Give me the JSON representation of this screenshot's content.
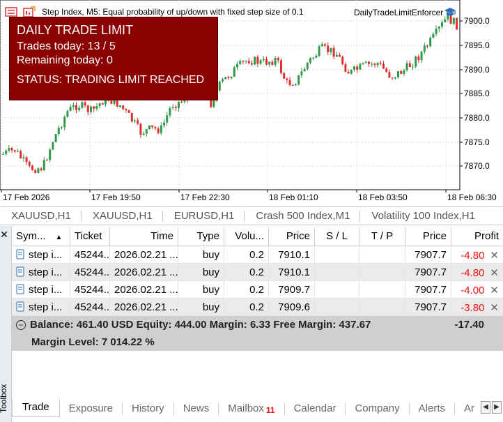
{
  "chart": {
    "title": "Step Index, M5:  Equal probability of up/down with fixed step size of 0.1",
    "ea_name": "DailyTradeLimitEnforcer",
    "price_labels": [
      "7900.0",
      "7895.0",
      "7890.0",
      "7885.0",
      "7880.0",
      "7875.0",
      "7870.0"
    ],
    "time_labels": [
      "17 Feb 2026",
      "17 Feb 19:50",
      "17 Feb 22:30",
      "18 Feb 01:10",
      "18 Feb 03:50",
      "18 Feb 06:30"
    ],
    "colors": {
      "up": "#2e9a4a",
      "down": "#e03030",
      "panel": "#8b0000"
    }
  },
  "limit_panel": {
    "title": "DAILY TRADE LIMIT",
    "trades_today": "Trades today: 13 / 5",
    "remaining": "Remaining today: 0",
    "status": "STATUS: TRADING LIMIT REACHED"
  },
  "chart_tabs": [
    "XAUUSD,H1",
    "XAUUSD,H1",
    "EURUSD,H1",
    "Crash 500 Index,M1",
    "Volatility 100 Index,H1"
  ],
  "toolbox": {
    "side_label": "Toolbox",
    "headers": {
      "symbol": "Sym...",
      "ticket": "Ticket",
      "time": "Time",
      "type": "Type",
      "volume": "Volu...",
      "price": "Price",
      "sl": "S / L",
      "tp": "T / P",
      "price2": "Price",
      "profit": "Profit"
    },
    "rows": [
      {
        "symbol": "step i...",
        "ticket": "45244...",
        "time": "2026.02.21 ...",
        "type": "buy",
        "volume": "0.2",
        "price": "7910.1",
        "sl": "",
        "tp": "",
        "price2": "7907.7",
        "profit": "-4.80"
      },
      {
        "symbol": "step i...",
        "ticket": "45244...",
        "time": "2026.02.21 ...",
        "type": "buy",
        "volume": "0.2",
        "price": "7910.1",
        "sl": "",
        "tp": "",
        "price2": "7907.7",
        "profit": "-4.80"
      },
      {
        "symbol": "step i...",
        "ticket": "45244...",
        "time": "2026.02.21 ...",
        "type": "buy",
        "volume": "0.2",
        "price": "7909.7",
        "sl": "",
        "tp": "",
        "price2": "7907.7",
        "profit": "-4.00"
      },
      {
        "symbol": "step i...",
        "ticket": "45244...",
        "time": "2026.02.21 ...",
        "type": "buy",
        "volume": "0.2",
        "price": "7909.6",
        "sl": "",
        "tp": "",
        "price2": "7907.7",
        "profit": "-3.80"
      }
    ],
    "balance_line": "Balance: 461.40 USD  Equity: 444.00  Margin: 6.33  Free Margin: 437.67",
    "margin_level": "Margin Level: 7 014.22 %",
    "total_profit": "-17.40"
  },
  "bottom_tabs": [
    "Trade",
    "Exposure",
    "History",
    "News",
    "Mailbox",
    "Calendar",
    "Company",
    "Alerts",
    "Ar"
  ],
  "mailbox_badge": "11"
}
